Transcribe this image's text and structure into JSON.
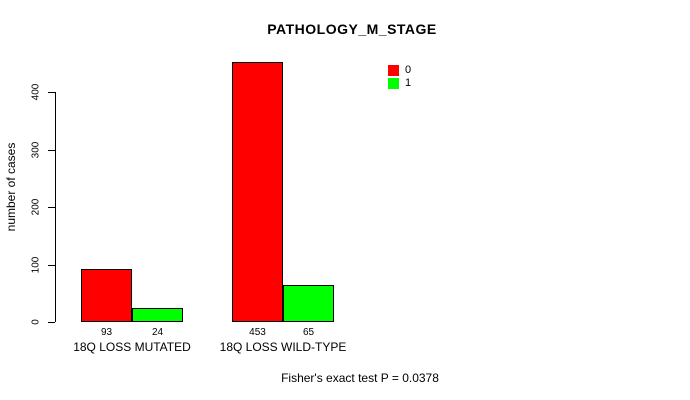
{
  "chart_data": {
    "type": "bar",
    "title": "PATHOLOGY_M_STAGE",
    "xlabel": "",
    "ylabel": "number of cases",
    "ylim": [
      0,
      460
    ],
    "yticks": [
      0,
      100,
      200,
      300,
      400
    ],
    "grid": false,
    "categories": [
      "18Q LOSS MUTATED",
      "18Q LOSS WILD-TYPE"
    ],
    "series": [
      {
        "name": "0",
        "color": "#ff0000",
        "values": [
          93,
          453
        ]
      },
      {
        "name": "1",
        "color": "#00ff00",
        "values": [
          24,
          65
        ]
      }
    ],
    "bar_value_labels": [
      [
        93,
        24
      ],
      [
        453,
        65
      ]
    ],
    "legend": {
      "position": "top-right",
      "entries": [
        {
          "label": "0",
          "color": "#ff0000"
        },
        {
          "label": "1",
          "color": "#00ff00"
        }
      ]
    },
    "footnote": "Fisher's exact test P = 0.0378"
  },
  "colors": {
    "series0": "#ff0000",
    "series1": "#00ff00",
    "axis": "#000000",
    "background": "#ffffff"
  }
}
